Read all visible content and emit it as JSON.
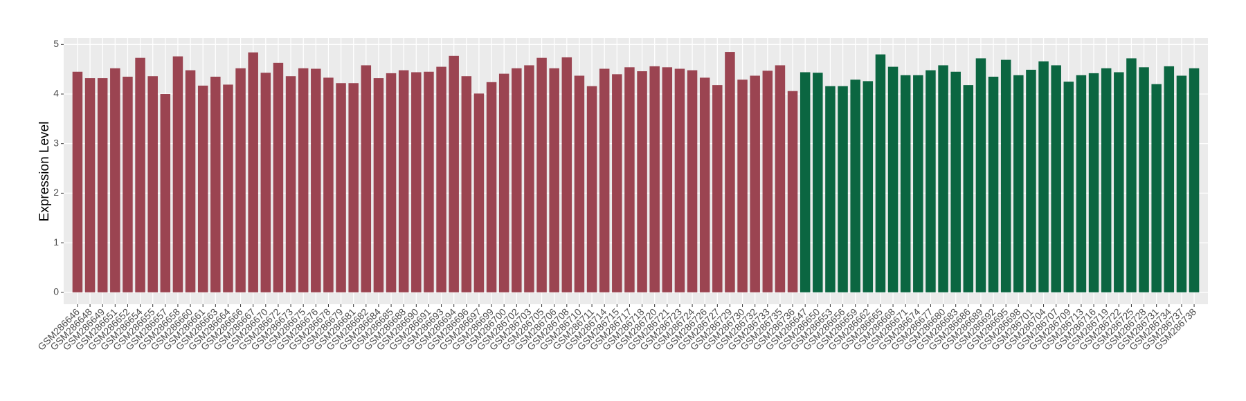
{
  "chart_data": {
    "type": "bar",
    "y_label": "Expression Level",
    "categories": [
      "GSM286646",
      "GSM286648",
      "GSM286649",
      "GSM286651",
      "GSM286652",
      "GSM286654",
      "GSM286655",
      "GSM286657",
      "GSM286658",
      "GSM286660",
      "GSM286661",
      "GSM286663",
      "GSM286664",
      "GSM286666",
      "GSM286667",
      "GSM286670",
      "GSM286672",
      "GSM286673",
      "GSM286675",
      "GSM286676",
      "GSM286678",
      "GSM286679",
      "GSM286681",
      "GSM286682",
      "GSM286684",
      "GSM286685",
      "GSM286688",
      "GSM286690",
      "GSM286691",
      "GSM286693",
      "GSM286694",
      "GSM286696",
      "GSM286697",
      "GSM286699",
      "GSM286700",
      "GSM286702",
      "GSM286703",
      "GSM286705",
      "GSM286706",
      "GSM286708",
      "GSM286710",
      "GSM286711",
      "GSM286714",
      "GSM286715",
      "GSM286717",
      "GSM286718",
      "GSM286720",
      "GSM286721",
      "GSM286723",
      "GSM286724",
      "GSM286726",
      "GSM286727",
      "GSM286729",
      "GSM286730",
      "GSM286732",
      "GSM286733",
      "GSM286735",
      "GSM286736",
      "GSM286647",
      "GSM286650",
      "GSM286653",
      "GSM286656",
      "GSM286659",
      "GSM286662",
      "GSM286665",
      "GSM286668",
      "GSM286671",
      "GSM286674",
      "GSM286677",
      "GSM286680",
      "GSM286683",
      "GSM286686",
      "GSM286689",
      "GSM286692",
      "GSM286695",
      "GSM286698",
      "GSM286701",
      "GSM286704",
      "GSM286707",
      "GSM286709",
      "GSM286713",
      "GSM286716",
      "GSM286719",
      "GSM286722",
      "GSM286725",
      "GSM286728",
      "GSM286731",
      "GSM286734",
      "GSM286737",
      "GSM286738"
    ],
    "series": [
      {
        "color": "#9b4451",
        "values": [
          4.45,
          4.32,
          4.32,
          4.52,
          4.35,
          4.73,
          4.36,
          4.0,
          4.76,
          4.48,
          4.17,
          4.35,
          4.19,
          4.52,
          4.84,
          4.43,
          4.63,
          4.36,
          4.52,
          4.51,
          4.33,
          4.22,
          4.22,
          4.58,
          4.32,
          4.42,
          4.48,
          4.44,
          4.45,
          4.55,
          4.77,
          4.36,
          4.01,
          4.24,
          4.41,
          4.52,
          4.58,
          4.73,
          4.52,
          4.74,
          4.37,
          4.16,
          4.51,
          4.4,
          4.54,
          4.46,
          4.56,
          4.54,
          4.51,
          4.48,
          4.33,
          4.18,
          4.85,
          4.29,
          4.37,
          4.47,
          4.58,
          4.06,
          null,
          null,
          null,
          null,
          null,
          null,
          null,
          null,
          null,
          null,
          null,
          null,
          null,
          null,
          null,
          null,
          null,
          null,
          null,
          null,
          null,
          null,
          null,
          null,
          null,
          null,
          null,
          null,
          null,
          null,
          null,
          null
        ]
      },
      {
        "color": "#0b6641",
        "values": [
          null,
          null,
          null,
          null,
          null,
          null,
          null,
          null,
          null,
          null,
          null,
          null,
          null,
          null,
          null,
          null,
          null,
          null,
          null,
          null,
          null,
          null,
          null,
          null,
          null,
          null,
          null,
          null,
          null,
          null,
          null,
          null,
          null,
          null,
          null,
          null,
          null,
          null,
          null,
          null,
          null,
          null,
          null,
          null,
          null,
          null,
          null,
          null,
          null,
          null,
          null,
          null,
          null,
          null,
          null,
          null,
          null,
          null,
          4.44,
          4.43,
          4.16,
          4.16,
          4.29,
          4.26,
          4.8,
          4.55,
          4.38,
          4.38,
          4.48,
          4.58,
          4.45,
          4.18,
          4.72,
          4.35,
          4.69,
          4.38,
          4.49,
          4.66,
          4.58,
          4.25,
          4.38,
          4.42,
          4.52,
          4.44,
          4.72,
          4.54,
          4.2,
          4.56,
          4.37,
          4.52
        ]
      }
    ],
    "ylim": [
      -0.24,
      5.13
    ],
    "yticks": [
      0,
      1,
      2,
      3,
      4,
      5
    ],
    "grid": true
  }
}
